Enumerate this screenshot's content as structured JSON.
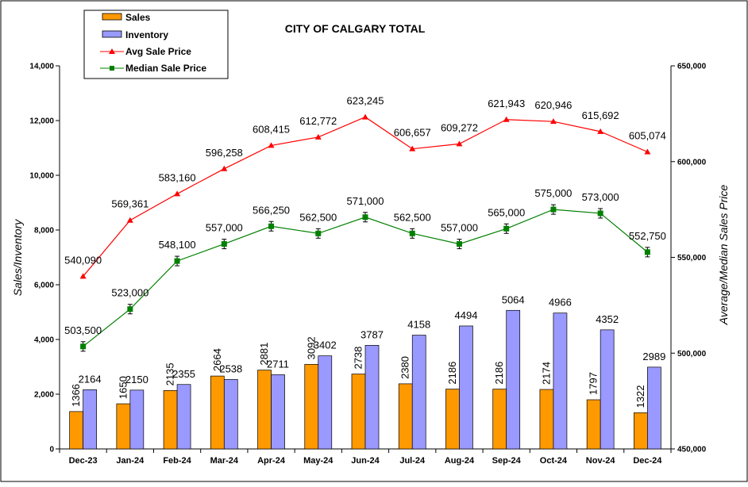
{
  "chart_data": {
    "type": "bar",
    "title": "CITY OF CALGARY TOTAL",
    "categories": [
      "Dec-23",
      "Jan-24",
      "Feb-24",
      "Mar-24",
      "Apr-24",
      "May-24",
      "Jun-24",
      "Jul-24",
      "Aug-24",
      "Sep-24",
      "Oct-24",
      "Nov-24",
      "Dec-24"
    ],
    "left_axis": {
      "label": "Sales/Inventory",
      "ylim": [
        0,
        14000
      ],
      "ticks": [
        "0",
        "2,000",
        "4,000",
        "6,000",
        "8,000",
        "10,000",
        "12,000",
        "14,000"
      ],
      "tick_values": [
        0,
        2000,
        4000,
        6000,
        8000,
        10000,
        12000,
        14000
      ]
    },
    "right_axis": {
      "label": "Average/Median Sales Price",
      "ylim": [
        450000,
        650000
      ],
      "ticks": [
        "450,000",
        "500,000",
        "550,000",
        "600,000",
        "650,000"
      ],
      "tick_values": [
        450000,
        500000,
        550000,
        600000,
        650000
      ]
    },
    "legend_placement": "top-left",
    "grid": false,
    "series": [
      {
        "name": "Sales",
        "type": "bar",
        "axis": "left",
        "color": "#FF9900",
        "values": [
          1366,
          1650,
          2135,
          2664,
          2881,
          3092,
          2738,
          2380,
          2186,
          2186,
          2174,
          1797,
          1322
        ],
        "labels": [
          "1366",
          "1650",
          "2135",
          "2664",
          "2881",
          "3092",
          "2738",
          "2380",
          "2186",
          "2186",
          "2174",
          "1797",
          "1322"
        ]
      },
      {
        "name": "Inventory",
        "type": "bar",
        "axis": "left",
        "color": "#9999FF",
        "values": [
          2164,
          2150,
          2355,
          2538,
          2711,
          3402,
          3787,
          4158,
          4494,
          5064,
          4966,
          4352,
          2989
        ],
        "labels": [
          "2164",
          "2150",
          "2355",
          "2538",
          "2711",
          "3402",
          "3787",
          "4158",
          "4494",
          "5064",
          "4966",
          "4352",
          "2989"
        ]
      },
      {
        "name": "Avg Sale Price",
        "type": "line",
        "axis": "right",
        "color": "#FF0000",
        "marker": "triangle",
        "values": [
          540090,
          569361,
          583160,
          596258,
          608415,
          612772,
          623245,
          606657,
          609272,
          621943,
          620946,
          615692,
          605074
        ],
        "labels": [
          "540,090",
          "569,361",
          "583,160",
          "596,258",
          "608,415",
          "612,772",
          "623,245",
          "606,657",
          "609,272",
          "621,943",
          "620,946",
          "615,692",
          "605,074"
        ]
      },
      {
        "name": "Median Sale Price",
        "type": "line",
        "axis": "right",
        "color": "#008000",
        "marker": "square",
        "error_bars": true,
        "values": [
          503500,
          523000,
          548100,
          557000,
          566250,
          562500,
          571000,
          562500,
          557000,
          565000,
          575000,
          573000,
          552750
        ],
        "labels": [
          "503,500",
          "523,000",
          "548,100",
          "557,000",
          "566,250",
          "562,500",
          "571,000",
          "562,500",
          "557,000",
          "565,000",
          "575,000",
          "573,000",
          "552,750"
        ]
      }
    ]
  }
}
